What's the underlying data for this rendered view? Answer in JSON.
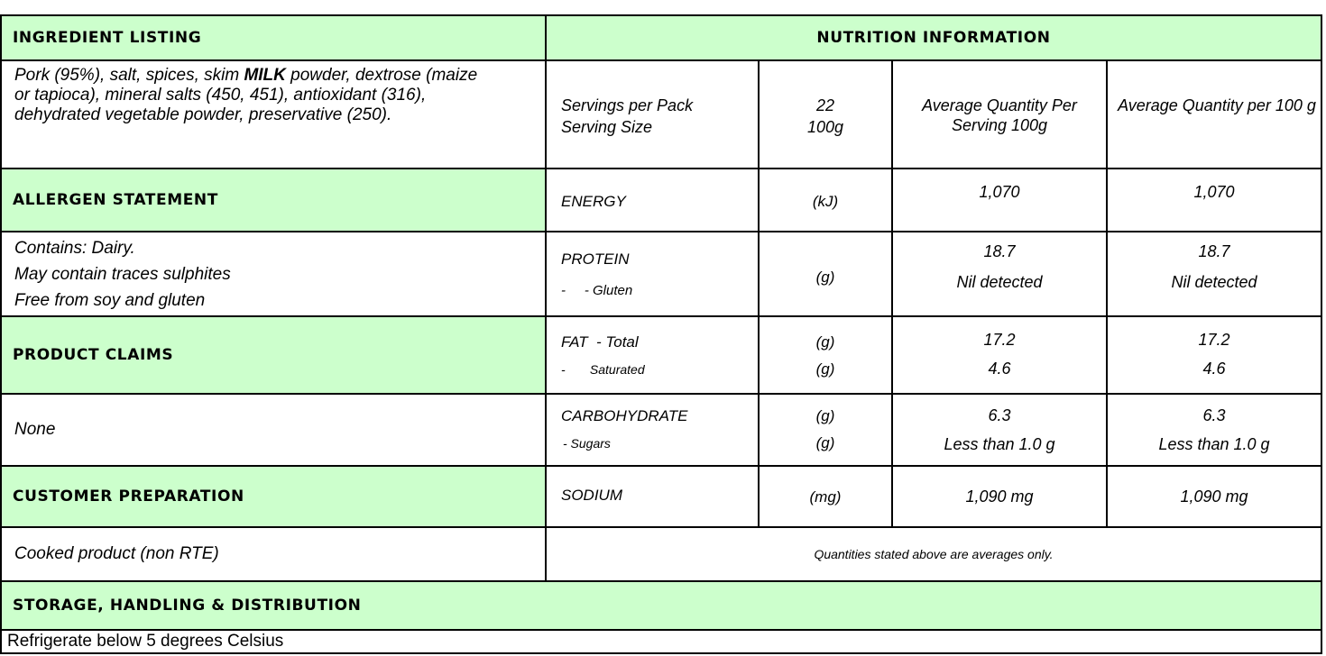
{
  "ingredients": {
    "header": "INGREDIENT LISTING",
    "text_before": "Pork (95%), salt, spices, skim ",
    "milk": "MILK",
    "text_after": " powder, dextrose (maize  or tapioca), mineral salts (450, 451), antioxidant (316), dehydrated vegetable powder, preservative (250)."
  },
  "allergen": {
    "header": "ALLERGEN STATEMENT",
    "lines": [
      "Contains: Dairy.",
      "May contain traces sulphites",
      "Free from soy and gluten"
    ]
  },
  "claims": {
    "header": "PRODUCT CLAIMS",
    "text": "None"
  },
  "preparation": {
    "header": "CUSTOMER PREPARATION",
    "text": "Cooked product (non RTE)"
  },
  "storage": {
    "header": "STORAGE, HANDLING & DISTRIBUTION",
    "text": "Refrigerate below 5 degrees Celsius"
  },
  "nutrition": {
    "header": "NUTRITION INFORMATION",
    "servings_label": "Servings per Pack",
    "serving_size_label": "Serving Size",
    "servings_value": "22",
    "serving_size_value": "100g",
    "col_per_serving": "Average Quantity Per Serving 100g",
    "col_per_100g": "Average Quantity per 100 g",
    "rows": {
      "energy": {
        "name": "ENERGY",
        "unit": "(kJ)",
        "serving": "1,070",
        "per100": "1,070"
      },
      "protein": {
        "name": "PROTEIN",
        "sub_name": "-     - Gluten",
        "unit": "(g)",
        "serving": "18.7",
        "serving_sub": "Nil detected",
        "per100": "18.7",
        "per100_sub": "Nil detected"
      },
      "fat": {
        "name": "FAT  - Total",
        "sub_name": "-       Saturated",
        "unit": "(g)",
        "sub_unit": "(g)",
        "serving": "17.2",
        "serving_sub": "4.6",
        "per100": "17.2",
        "per100_sub": "4.6"
      },
      "carbohydrate": {
        "name": "CARBOHYDRATE",
        "sub_name": "- Sugars",
        "unit": "(g)",
        "sub_unit": "(g)",
        "serving": "6.3",
        "serving_sub": "Less than 1.0 g",
        "per100": "6.3",
        "per100_sub": "Less than 1.0 g"
      },
      "sodium": {
        "name": "SODIUM",
        "unit": "(mg)",
        "serving": "1,090 mg",
        "per100": "1,090 mg"
      }
    },
    "footnote": "Quantities stated above are averages only."
  },
  "colors": {
    "header_fill": "#ccffcc",
    "border": "#000000"
  }
}
